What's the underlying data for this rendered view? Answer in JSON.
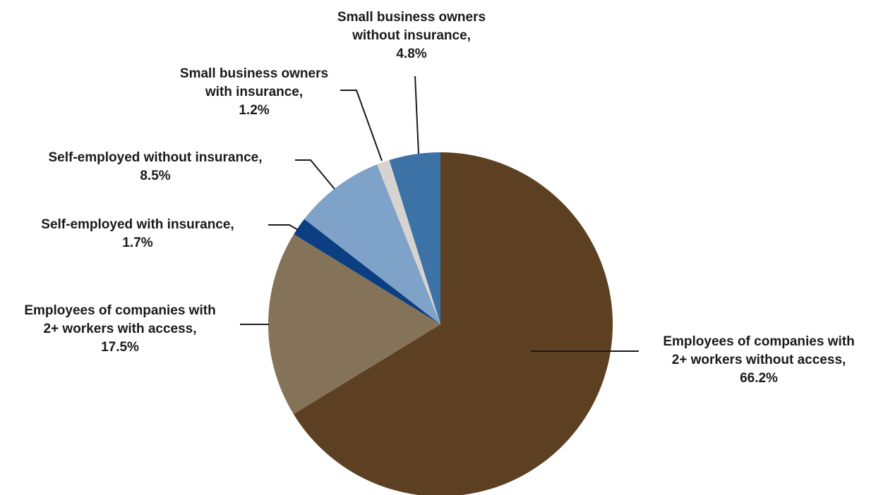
{
  "chart_data": {
    "type": "pie",
    "title": "",
    "slices": [
      {
        "label_lines": [
          "Employees of companies with",
          "2+  workers without access,",
          "66.2%"
        ],
        "category": "Employees of companies with 2+ workers without access",
        "value": 66.2,
        "color": "#5d3f22"
      },
      {
        "label_lines": [
          "Employees of companies with",
          "2+ workers with access,",
          "17.5%"
        ],
        "category": "Employees of companies with 2+ workers with access",
        "value": 17.5,
        "color": "#857359"
      },
      {
        "label_lines": [
          "Self-employed with insurance,",
          "1.7%"
        ],
        "category": "Self-employed with insurance",
        "value": 1.7,
        "color": "#0c3f82"
      },
      {
        "label_lines": [
          "Self-employed without insurance,",
          "8.5%"
        ],
        "category": "Self-employed without insurance",
        "value": 8.5,
        "color": "#7fa2c8"
      },
      {
        "label_lines": [
          "Small business owners",
          "with insurance,",
          "1.2%"
        ],
        "category": "Small business owners with insurance",
        "value": 1.2,
        "color": "#d7d3d0"
      },
      {
        "label_lines": [
          "Small business owners",
          "without insurance,",
          "4.8%"
        ],
        "category": "Small business owners without insurance",
        "value": 4.8,
        "color": "#3d72a6"
      }
    ],
    "start_angle": "12 o'clock",
    "direction": "clockwise",
    "labels": "outside with leader lines",
    "legend": "none"
  }
}
